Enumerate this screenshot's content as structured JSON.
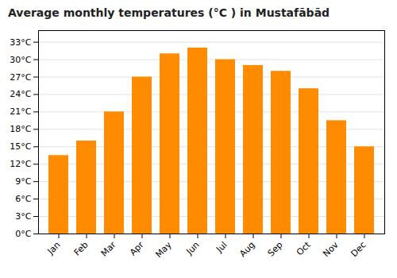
{
  "chart_data": {
    "type": "bar",
    "title": "Average monthly temperatures (°C ) in Mustafābād",
    "categories": [
      "Jan",
      "Feb",
      "Mar",
      "Apr",
      "May",
      "Jun",
      "Jul",
      "Aug",
      "Sep",
      "Oct",
      "Nov",
      "Dec"
    ],
    "values": [
      13.5,
      16.0,
      21.0,
      27.0,
      31.0,
      32.0,
      30.0,
      29.0,
      28.0,
      25.0,
      19.5,
      15.0
    ],
    "color": "#FF8C00",
    "ylim": [
      0,
      35
    ],
    "yticks": [
      {
        "value": 0,
        "label": "0°C"
      },
      {
        "value": 3,
        "label": "3°C"
      },
      {
        "value": 6,
        "label": "6°C"
      },
      {
        "value": 9,
        "label": "9°C"
      },
      {
        "value": 12,
        "label": "12°C"
      },
      {
        "value": 15,
        "label": "15°C"
      },
      {
        "value": 18,
        "label": "18°C"
      },
      {
        "value": 21,
        "label": "21°C"
      },
      {
        "value": 24,
        "label": "24°C"
      },
      {
        "value": 27,
        "label": "27°C"
      },
      {
        "value": 30,
        "label": "30°C"
      },
      {
        "value": 33,
        "label": "33°C"
      }
    ],
    "grid": true
  }
}
